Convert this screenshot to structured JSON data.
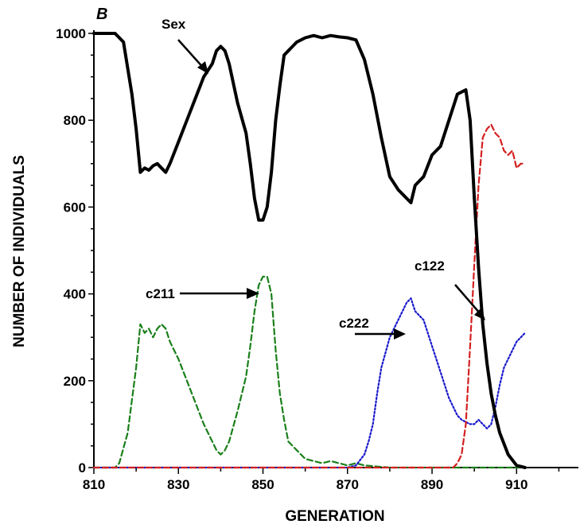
{
  "chart_data": {
    "type": "line",
    "panel_label": "B",
    "xlabel": "GENERATION",
    "ylabel": "NUMBER OF INDIVIDUALS",
    "xlim": [
      810,
      925
    ],
    "ylim": [
      0,
      1000
    ],
    "x_ticks": [
      810,
      830,
      850,
      870,
      890,
      910
    ],
    "y_ticks": [
      0,
      200,
      400,
      600,
      800,
      1000
    ],
    "series": [
      {
        "name": "Sex",
        "color": "#000000",
        "style": "solid",
        "x": [
          810,
          815,
          817,
          819,
          820,
          821,
          822,
          823,
          824,
          825,
          826,
          827,
          828,
          830,
          832,
          834,
          836,
          838,
          839,
          840,
          841,
          842,
          844,
          846,
          847,
          848,
          849,
          850,
          851,
          852,
          853,
          854,
          855,
          856,
          857,
          858,
          860,
          862,
          864,
          866,
          868,
          870,
          872,
          874,
          876,
          878,
          880,
          882,
          884,
          885,
          886,
          887,
          888,
          890,
          892,
          894,
          896,
          897,
          898,
          899,
          900,
          901,
          902,
          903,
          904,
          905,
          906,
          908,
          910,
          912
        ],
        "y": [
          1000,
          1000,
          980,
          860,
          780,
          680,
          690,
          685,
          695,
          700,
          690,
          680,
          700,
          750,
          800,
          850,
          900,
          930,
          960,
          970,
          960,
          930,
          840,
          770,
          700,
          620,
          570,
          570,
          600,
          680,
          800,
          880,
          950,
          960,
          970,
          980,
          990,
          995,
          990,
          995,
          992,
          990,
          985,
          940,
          860,
          760,
          670,
          640,
          620,
          610,
          650,
          660,
          670,
          720,
          740,
          800,
          860,
          865,
          870,
          800,
          620,
          460,
          330,
          240,
          170,
          120,
          80,
          30,
          5,
          0
        ]
      },
      {
        "name": "c211",
        "color": "#1a7f1a",
        "style": "dashed",
        "x": [
          810,
          815,
          816,
          818,
          820,
          821,
          822,
          823,
          824,
          825,
          826,
          827,
          828,
          830,
          832,
          834,
          836,
          838,
          839,
          840,
          841,
          842,
          844,
          846,
          847,
          848,
          849,
          850,
          851,
          852,
          853,
          854,
          855,
          856,
          858,
          860,
          862,
          864,
          866,
          868,
          870,
          872,
          874,
          880,
          890,
          900,
          910,
          912
        ],
        "y": [
          0,
          0,
          10,
          80,
          230,
          330,
          310,
          320,
          300,
          320,
          330,
          320,
          290,
          250,
          200,
          150,
          100,
          60,
          40,
          30,
          40,
          60,
          130,
          210,
          280,
          360,
          420,
          440,
          440,
          400,
          270,
          170,
          110,
          60,
          40,
          20,
          15,
          10,
          15,
          10,
          5,
          10,
          5,
          0,
          0,
          0,
          0,
          0
        ]
      },
      {
        "name": "c222",
        "color": "#1a1acc",
        "style": "dotted",
        "x": [
          810,
          870,
          872,
          874,
          875,
          876,
          877,
          878,
          880,
          882,
          883,
          884,
          885,
          886,
          887,
          888,
          889,
          890,
          891,
          892,
          893,
          894,
          895,
          896,
          897,
          898,
          899,
          900,
          901,
          902,
          903,
          904,
          905,
          906,
          907,
          908,
          909,
          910,
          911,
          912
        ],
        "y": [
          0,
          0,
          5,
          30,
          60,
          100,
          170,
          230,
          300,
          340,
          360,
          380,
          390,
          360,
          350,
          340,
          310,
          280,
          250,
          220,
          190,
          160,
          140,
          120,
          110,
          105,
          100,
          100,
          110,
          100,
          90,
          100,
          140,
          190,
          230,
          250,
          270,
          290,
          300,
          310
        ]
      },
      {
        "name": "c122",
        "color": "#d42020",
        "style": "dashed",
        "x": [
          810,
          895,
          896,
          897,
          898,
          899,
          900,
          901,
          902,
          903,
          904,
          905,
          906,
          907,
          908,
          909,
          910,
          911,
          912
        ],
        "y": [
          0,
          0,
          10,
          30,
          100,
          280,
          470,
          650,
          760,
          780,
          790,
          770,
          760,
          730,
          720,
          730,
          690,
          700,
          700
        ]
      }
    ],
    "annotations": [
      {
        "text": "Sex",
        "target_series": "Sex"
      },
      {
        "text": "c211",
        "target_series": "c211"
      },
      {
        "text": "c222",
        "target_series": "c222"
      },
      {
        "text": "c122",
        "target_series": "c122"
      }
    ]
  }
}
